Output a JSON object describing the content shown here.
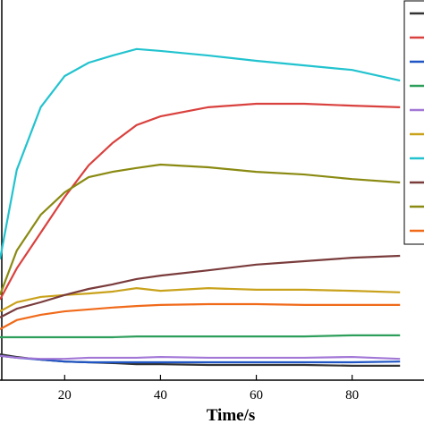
{
  "chart_data": {
    "type": "line",
    "xlabel": "Time/s",
    "x": [
      6.5,
      10,
      15,
      20,
      25,
      30,
      35,
      40,
      50,
      60,
      70,
      80,
      90
    ],
    "xlim": [
      6.5,
      95
    ],
    "xticks": [
      20,
      40,
      60,
      80
    ],
    "ylim": [
      0,
      100
    ],
    "series": [
      {
        "color": "#333333",
        "values": [
          6.8,
          6.1,
          5.4,
          4.9,
          4.7,
          4.5,
          4.2,
          4.2,
          4.0,
          4.0,
          4.0,
          3.8,
          3.8
        ]
      },
      {
        "color": "#d9413e",
        "values": [
          21.2,
          29.4,
          38.8,
          48.2,
          56.5,
          62.4,
          67.1,
          69.4,
          71.8,
          72.7,
          72.7,
          72.2,
          71.8
        ]
      },
      {
        "color": "#1f55c4",
        "values": [
          6.4,
          5.9,
          5.4,
          4.9,
          4.7,
          4.7,
          4.7,
          4.7,
          4.7,
          4.7,
          4.7,
          4.7,
          4.9
        ]
      },
      {
        "color": "#2e9e5b",
        "values": [
          11.3,
          11.3,
          11.3,
          11.3,
          11.3,
          11.3,
          11.5,
          11.5,
          11.5,
          11.5,
          11.5,
          11.8,
          11.8
        ]
      },
      {
        "color": "#a277d6",
        "values": [
          6.4,
          5.9,
          5.6,
          5.6,
          5.9,
          5.9,
          5.9,
          6.1,
          5.9,
          5.9,
          5.9,
          6.1,
          5.6
        ]
      },
      {
        "color": "#c9a21b",
        "values": [
          18.1,
          20.5,
          21.9,
          22.4,
          22.8,
          23.3,
          24.2,
          23.5,
          24.2,
          23.8,
          23.8,
          23.5,
          23.1
        ]
      },
      {
        "color": "#22c3cf",
        "values": [
          31.8,
          55.3,
          71.8,
          80.0,
          83.5,
          85.4,
          87.1,
          86.6,
          85.4,
          84.0,
          82.8,
          81.6,
          78.8
        ]
      },
      {
        "color": "#7a3b3b",
        "values": [
          16.5,
          18.8,
          20.5,
          22.4,
          24.0,
          25.2,
          26.6,
          27.5,
          28.9,
          30.4,
          31.3,
          32.2,
          32.7
        ]
      },
      {
        "color": "#8a8a12",
        "values": [
          22.4,
          34.1,
          43.5,
          49.4,
          53.4,
          54.8,
          55.8,
          56.7,
          56.0,
          54.8,
          54.1,
          52.9,
          52.0
        ]
      },
      {
        "color": "#f06a1a",
        "values": [
          13.4,
          15.8,
          17.2,
          18.1,
          18.6,
          19.1,
          19.5,
          19.8,
          20.0,
          20.0,
          19.8,
          19.8,
          19.8
        ]
      }
    ]
  }
}
